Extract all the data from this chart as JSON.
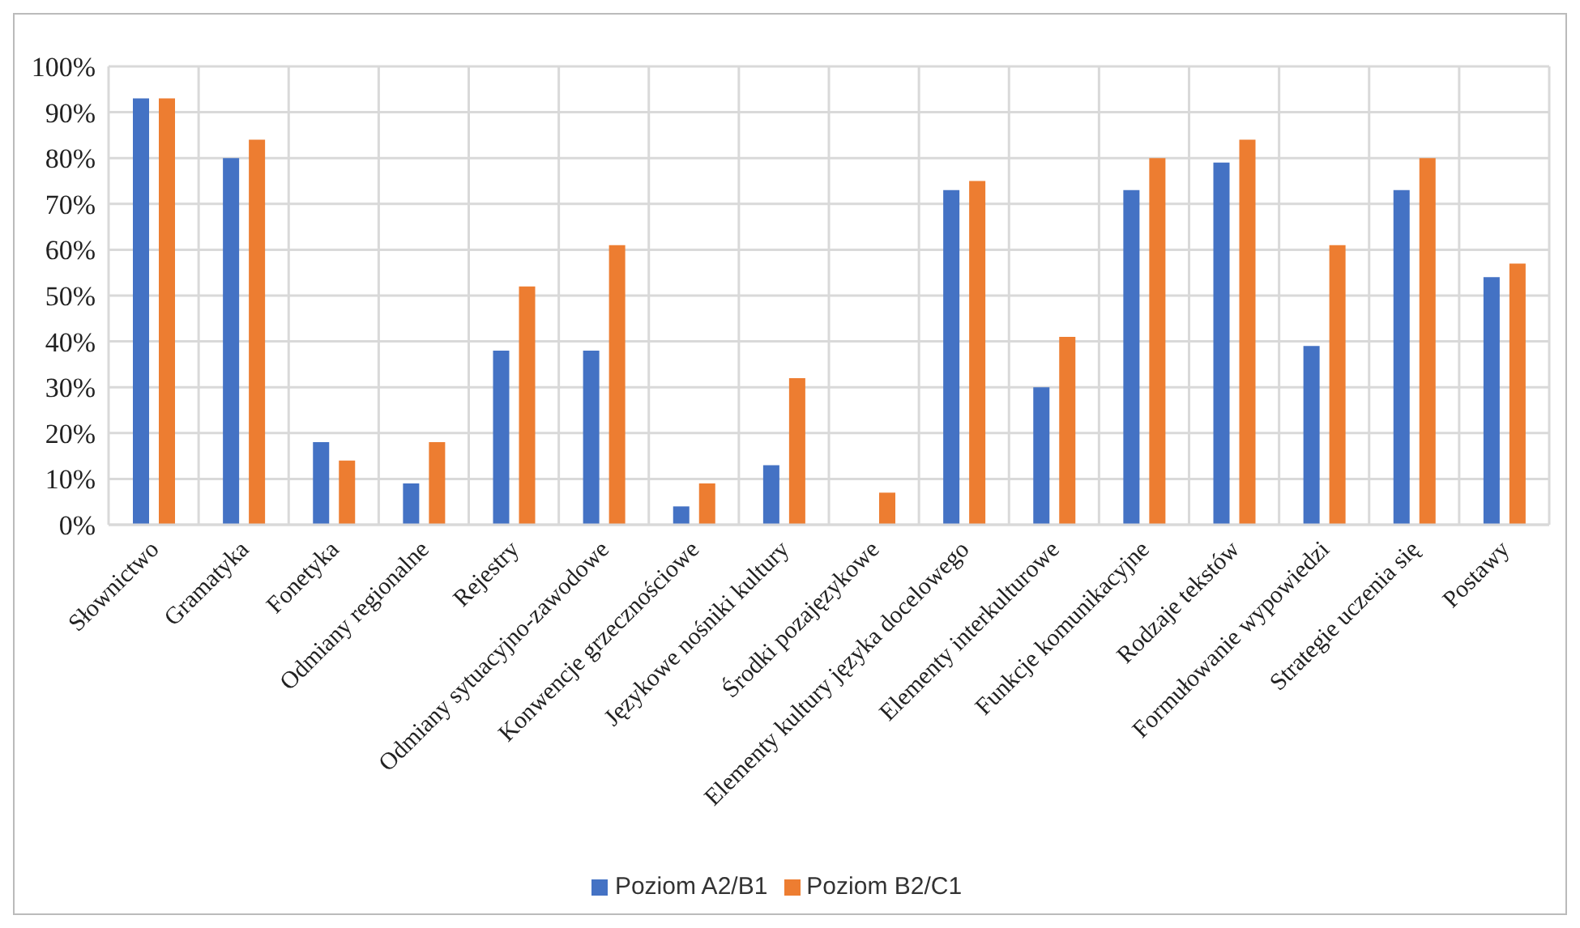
{
  "chart_data": {
    "type": "bar",
    "categories": [
      "Słownictwo",
      "Gramatyka",
      "Fonetyka",
      "Odmiany regionalne",
      "Rejestry",
      "Odmiany sytuacyjno-zawodowe",
      "Konwencje grzecznościowe",
      "Językowe nośniki kultury",
      "Środki pozajęzykowe",
      "Elementy kultury języka docelowego",
      "Elementy interkulturowe",
      "Funkcje komunikacyjne",
      "Rodzaje tekstów",
      "Formułowanie wypowiedzi",
      "Strategie uczenia się",
      "Postawy"
    ],
    "series": [
      {
        "name": "Poziom A2/B1",
        "color": "#4472c4",
        "values": [
          93,
          80,
          18,
          9,
          38,
          38,
          4,
          13,
          0,
          73,
          30,
          73,
          79,
          39,
          73,
          54
        ]
      },
      {
        "name": "Poziom B2/C1",
        "color": "#ed7d31",
        "values": [
          93,
          84,
          14,
          18,
          52,
          61,
          9,
          32,
          7,
          75,
          41,
          80,
          84,
          61,
          80,
          57
        ]
      }
    ],
    "ylim": [
      0,
      100
    ],
    "yticks": [
      {
        "value": 0,
        "label": "0%"
      },
      {
        "value": 10,
        "label": "10%"
      },
      {
        "value": 20,
        "label": "20%"
      },
      {
        "value": 30,
        "label": "30%"
      },
      {
        "value": 40,
        "label": "40%"
      },
      {
        "value": 50,
        "label": "50%"
      },
      {
        "value": 60,
        "label": "60%"
      },
      {
        "value": 70,
        "label": "70%"
      },
      {
        "value": 80,
        "label": "80%"
      },
      {
        "value": 90,
        "label": "90%"
      },
      {
        "value": 100,
        "label": "100%"
      }
    ],
    "grid": true,
    "legend": "bottom"
  }
}
